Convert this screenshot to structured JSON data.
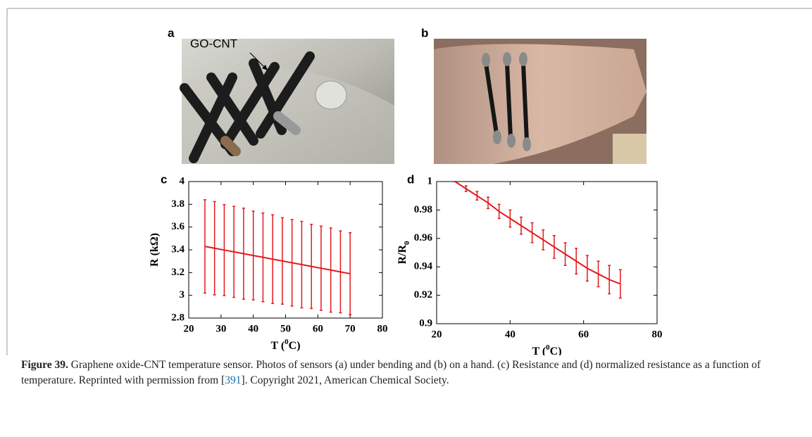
{
  "panels": {
    "a": "a",
    "b": "b",
    "c": "c",
    "d": "d"
  },
  "photo_a_label": "GO-CNT",
  "chart_data": [
    {
      "type": "line",
      "xlabel": [
        "T (",
        "0",
        "C)"
      ],
      "ylabel": [
        "R (kΩ)"
      ],
      "x": [
        25,
        28,
        31,
        34,
        37,
        40,
        43,
        46,
        49,
        52,
        55,
        58,
        61,
        64,
        67,
        70
      ],
      "values": [
        3.43,
        3.414,
        3.398,
        3.382,
        3.366,
        3.35,
        3.334,
        3.318,
        3.302,
        3.286,
        3.27,
        3.254,
        3.238,
        3.222,
        3.206,
        3.19
      ],
      "errors": [
        0.41,
        0.41,
        0.4,
        0.4,
        0.4,
        0.39,
        0.39,
        0.39,
        0.38,
        0.38,
        0.38,
        0.37,
        0.37,
        0.37,
        0.36,
        0.36
      ],
      "color": "#e41a1c",
      "xlim": [
        20,
        80
      ],
      "xticks": [
        20,
        30,
        40,
        50,
        60,
        70,
        80
      ],
      "ylim": [
        2.8,
        4
      ],
      "yticks": [
        2.8,
        3,
        3.2,
        3.4,
        3.6,
        3.8,
        4
      ]
    },
    {
      "type": "line",
      "xlabel": [
        "T (",
        "0",
        "C)"
      ],
      "ylabel": [
        "R/R",
        "0"
      ],
      "x": [
        25,
        28,
        31,
        34,
        37,
        40,
        43,
        46,
        49,
        52,
        55,
        58,
        61,
        64,
        67,
        70
      ],
      "values": [
        1,
        0.995,
        0.99,
        0.985,
        0.979,
        0.974,
        0.969,
        0.964,
        0.959,
        0.954,
        0.949,
        0.944,
        0.939,
        0.935,
        0.931,
        0.928
      ],
      "errors": [
        0,
        0.002,
        0.003,
        0.004,
        0.005,
        0.006,
        0.006,
        0.007,
        0.007,
        0.008,
        0.008,
        0.009,
        0.009,
        0.009,
        0.01,
        0.01
      ],
      "color": "#e41a1c",
      "xlim": [
        20,
        80
      ],
      "xticks": [
        20,
        40,
        60,
        80
      ],
      "ylim": [
        0.9,
        1
      ],
      "yticks": [
        0.9,
        0.92,
        0.94,
        0.96,
        0.98,
        1
      ]
    }
  ],
  "caption": {
    "label": "Figure 39.",
    "parts": [
      "Graphene oxide-CNT temperature sensor. Photos of sensors (a) under bending and (b) on a hand. (c) Resistance and (d) normalized resistance as a function of temperature. Reprinted with permission from [",
      "391",
      "]. Copyright 2021, American Chemical Society."
    ]
  }
}
